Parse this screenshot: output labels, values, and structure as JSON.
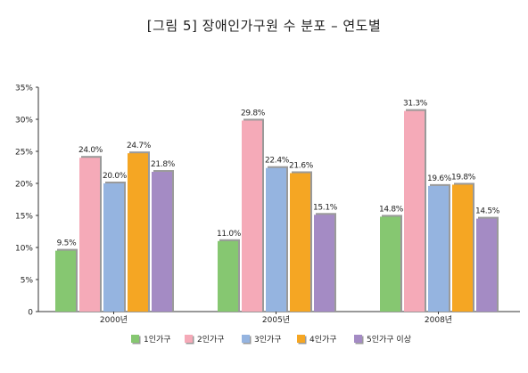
{
  "chart_data": {
    "type": "bar",
    "title": "[그림 5] 장애인가구원 수 분포 – 연도별",
    "categories": [
      "2000년",
      "2005년",
      "2008년"
    ],
    "series": [
      {
        "name": "1인가구",
        "values": [
          9.5,
          11.0,
          14.8
        ],
        "labels": [
          "9.5%",
          "11.0%",
          "14.8%"
        ],
        "color": "#86c771"
      },
      {
        "name": "2인가구",
        "values": [
          24.0,
          29.8,
          31.3
        ],
        "labels": [
          "24.0%",
          "29.8%",
          "31.3%"
        ],
        "color": "#f5aab8"
      },
      {
        "name": "3인가구",
        "values": [
          20.0,
          22.4,
          19.6
        ],
        "labels": [
          "20.0%",
          "22.4%",
          "19.6%"
        ],
        "color": "#95b4e0"
      },
      {
        "name": "4인가구",
        "values": [
          24.7,
          21.6,
          19.8
        ],
        "labels": [
          "24.7%",
          "21.6%",
          "19.8%"
        ],
        "color": "#f5a623"
      },
      {
        "name": "5인가구 이상",
        "values": [
          21.8,
          15.1,
          14.5
        ],
        "labels": [
          "21.8%",
          "15.1%",
          "14.5%"
        ],
        "color": "#a48bc4"
      }
    ],
    "ylim": [
      0,
      35
    ],
    "yticks": [
      0,
      5,
      10,
      15,
      20,
      25,
      30,
      35
    ],
    "ytick_labels": [
      "0",
      "5%",
      "10%",
      "15%",
      "20%",
      "25%",
      "30%",
      "35%"
    ],
    "grid": false,
    "legend": "bottom",
    "shadow_color": "#9a9a9a"
  }
}
